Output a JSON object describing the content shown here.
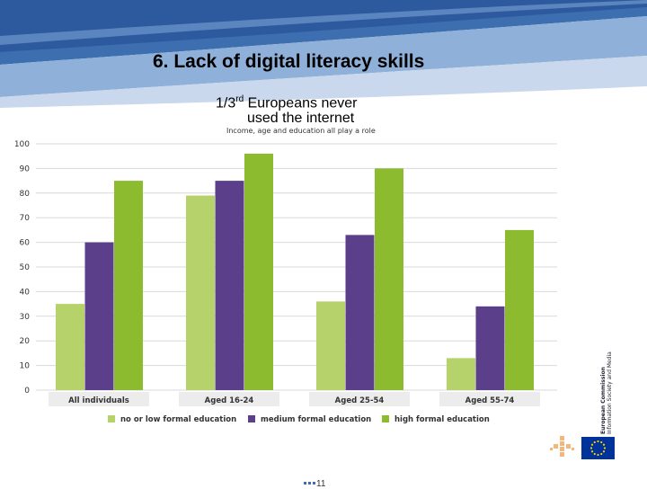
{
  "slide": {
    "title": "6. Lack of digital literacy skills",
    "subtitle_prefix": "1/3",
    "subtitle_sup": "rd",
    "subtitle_rest": " Europeans never",
    "subtitle_line2": "used the internet",
    "page_number": "11"
  },
  "chart_data": {
    "type": "bar",
    "note": "Income, age and education all play a role",
    "categories": [
      "All individuals",
      "Aged 16-24",
      "Aged 25-54",
      "Aged 55-74"
    ],
    "series": [
      {
        "name": "no or low formal education",
        "color": "#b5d36a",
        "values": [
          35,
          79,
          36,
          13
        ]
      },
      {
        "name": "medium formal education",
        "color": "#5b3f8a",
        "values": [
          60,
          85,
          63,
          34
        ]
      },
      {
        "name": "high formal education",
        "color": "#8dbb2f",
        "values": [
          85,
          96,
          90,
          65
        ]
      }
    ],
    "ylim": [
      0,
      100
    ],
    "yticks": [
      0,
      10,
      20,
      30,
      40,
      50,
      60,
      70,
      80,
      90,
      100
    ],
    "grid": true,
    "legend_position": "bottom"
  },
  "branding": {
    "ec_line1": "European Commission",
    "ec_line2": "Information Society and Media",
    "flag_color": "#003399",
    "star_color": "#ffcc00"
  }
}
